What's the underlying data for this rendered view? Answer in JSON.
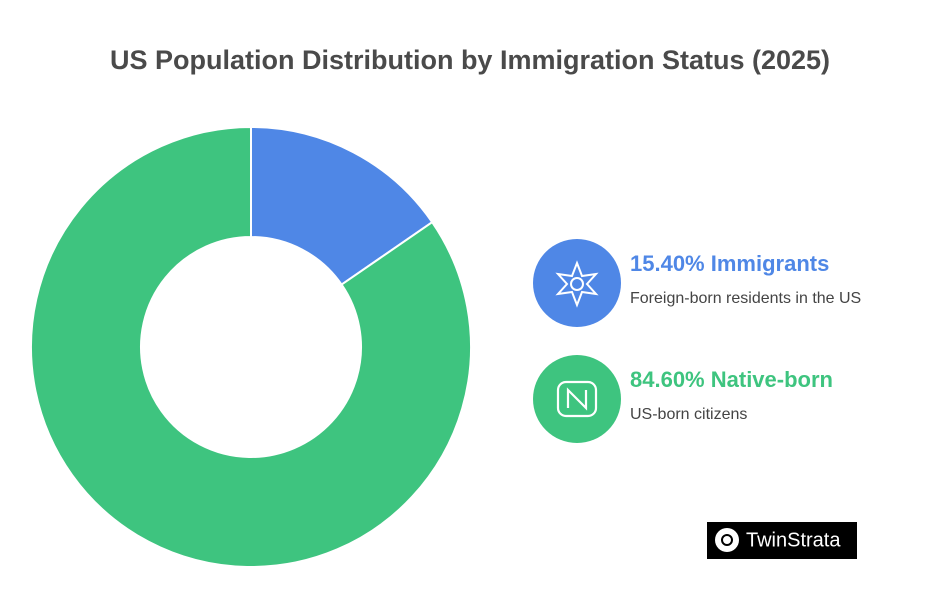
{
  "chart_data": {
    "type": "donut",
    "title": "US Population Distribution by Immigration Status (2025)",
    "categories": [
      "Immigrants",
      "Native-born"
    ],
    "values": [
      15.4,
      84.6
    ],
    "value_labels": [
      "15.40%",
      "84.60%"
    ],
    "descriptions": [
      "Foreign-born residents in the US",
      "US-born citizens"
    ],
    "colors": [
      "#4f87e6",
      "#3ec47f"
    ],
    "watermark": "TwinStrata"
  }
}
